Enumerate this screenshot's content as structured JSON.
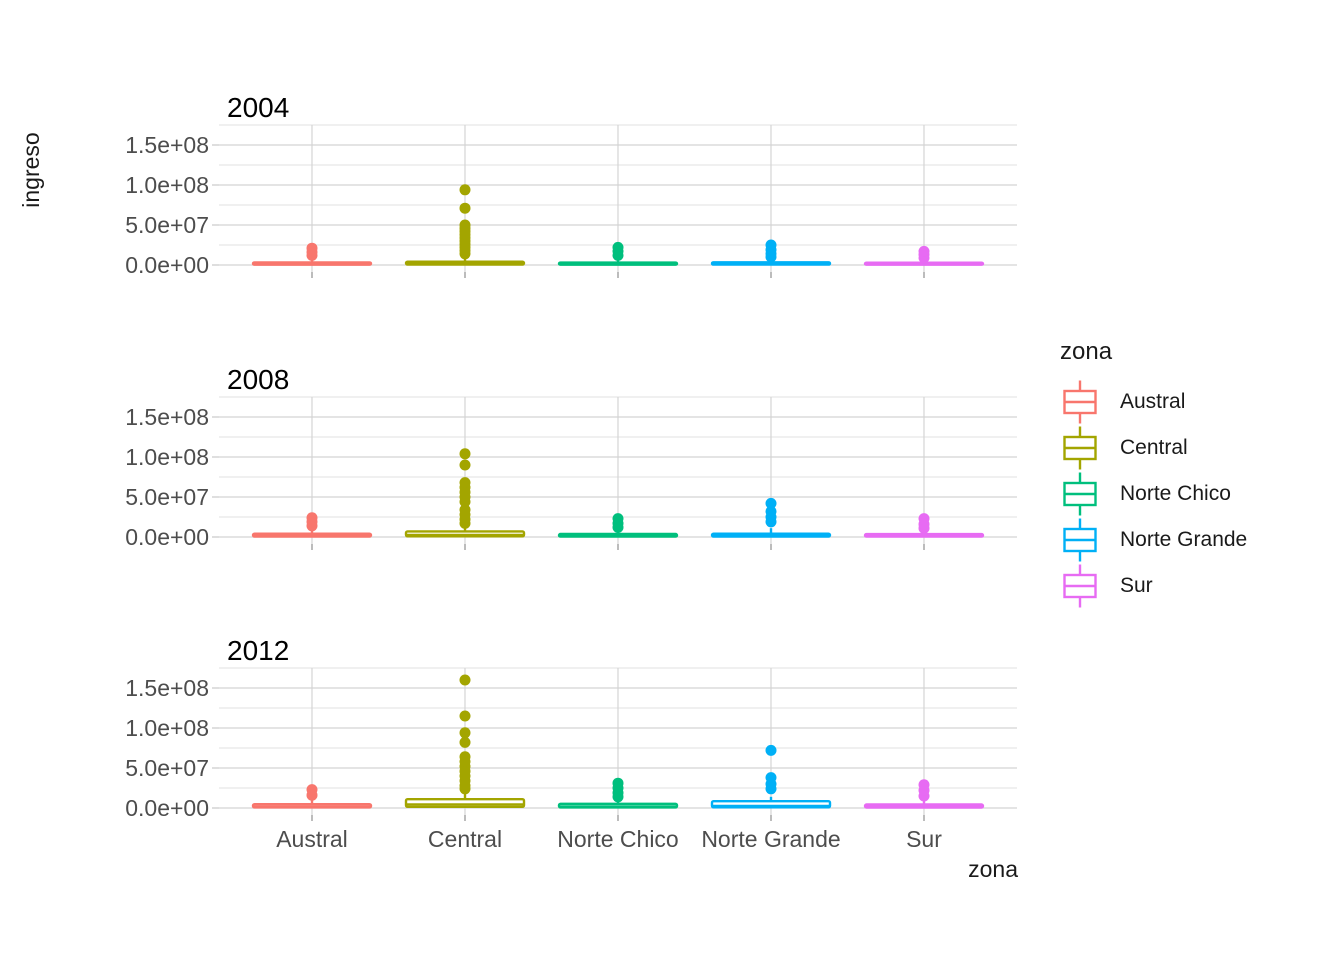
{
  "figure_background": "#FFFFFF",
  "legend": {
    "title": "zona",
    "items": [
      {
        "label": "Austral",
        "color": "#F8766D"
      },
      {
        "label": "Central",
        "color": "#A3A500"
      },
      {
        "label": "Norte Chico",
        "color": "#00BF7D"
      },
      {
        "label": "Norte Grande",
        "color": "#00B0F6"
      },
      {
        "label": "Sur",
        "color": "#E76BF3"
      }
    ]
  },
  "chart_data": {
    "type": "boxplot",
    "facet_by": "year",
    "grid": "on",
    "legend_position": "right",
    "x_axis": {
      "label": "zona",
      "categories": [
        "Austral",
        "Central",
        "Norte Chico",
        "Norte Grande",
        "Sur"
      ]
    },
    "y_axis": {
      "label": "ingreso",
      "tick_labels": [
        "0.0e+00",
        "5.0e+07",
        "1.0e+08",
        "1.5e+08"
      ],
      "tick_values": [
        0,
        50000000,
        100000000,
        150000000
      ],
      "minor_tick_values": [
        25000000,
        75000000,
        125000000,
        175000000
      ],
      "range": [
        -9000000,
        179000000
      ]
    },
    "series_colors": {
      "Austral": "#F8766D",
      "Central": "#A3A500",
      "Norte Chico": "#00BF7D",
      "Norte Grande": "#00B0F6",
      "Sur": "#E76BF3"
    },
    "facets": [
      {
        "title": "2004",
        "groups": [
          {
            "zona": "Austral",
            "color": "#F8766D",
            "stats": {
              "whisker_low": 0,
              "q1": 400000,
              "median": 1400000,
              "q3": 3200000,
              "whisker_high": 9000000
            },
            "outliers": [
              12000000,
              16000000,
              21000000
            ]
          },
          {
            "zona": "Central",
            "color": "#A3A500",
            "stats": {
              "whisker_low": 0,
              "q1": 600000,
              "median": 1800000,
              "q3": 4200000,
              "whisker_high": 12000000
            },
            "outliers": [
              14000000,
              18000000,
              22000000,
              26000000,
              30000000,
              34000000,
              38000000,
              42000000,
              46000000,
              50000000,
              71000000,
              94000000
            ]
          },
          {
            "zona": "Norte Chico",
            "color": "#00BF7D",
            "stats": {
              "whisker_low": 0,
              "q1": 400000,
              "median": 1300000,
              "q3": 3000000,
              "whisker_high": 8000000
            },
            "outliers": [
              12000000,
              17000000,
              22000000
            ]
          },
          {
            "zona": "Norte Grande",
            "color": "#00B0F6",
            "stats": {
              "whisker_low": 0,
              "q1": 500000,
              "median": 1500000,
              "q3": 3400000,
              "whisker_high": 9000000
            },
            "outliers": [
              10000000,
              14000000,
              19000000,
              25000000
            ]
          },
          {
            "zona": "Sur",
            "color": "#E76BF3",
            "stats": {
              "whisker_low": 0,
              "q1": 400000,
              "median": 1200000,
              "q3": 2800000,
              "whisker_high": 8000000
            },
            "outliers": [
              9000000,
              13000000,
              17000000
            ]
          }
        ]
      },
      {
        "title": "2008",
        "groups": [
          {
            "zona": "Austral",
            "color": "#F8766D",
            "stats": {
              "whisker_low": 0,
              "q1": 600000,
              "median": 1800000,
              "q3": 4200000,
              "whisker_high": 11000000
            },
            "outliers": [
              14000000,
              19000000,
              24000000
            ]
          },
          {
            "zona": "Central",
            "color": "#A3A500",
            "stats": {
              "whisker_low": 0,
              "q1": 900000,
              "median": 2600000,
              "q3": 7000000,
              "whisker_high": 15000000
            },
            "outliers": [
              17000000,
              22000000,
              28000000,
              34000000,
              44000000,
              50000000,
              56000000,
              62000000,
              68000000,
              90000000,
              104000000
            ]
          },
          {
            "zona": "Norte Chico",
            "color": "#00BF7D",
            "stats": {
              "whisker_low": 0,
              "q1": 500000,
              "median": 1600000,
              "q3": 3800000,
              "whisker_high": 10000000
            },
            "outliers": [
              12000000,
              17000000,
              23000000
            ]
          },
          {
            "zona": "Norte Grande",
            "color": "#00B0F6",
            "stats": {
              "whisker_low": 0,
              "q1": 600000,
              "median": 1800000,
              "q3": 4200000,
              "whisker_high": 11000000
            },
            "outliers": [
              19000000,
              25000000,
              32000000,
              42000000
            ]
          },
          {
            "zona": "Sur",
            "color": "#E76BF3",
            "stats": {
              "whisker_low": 0,
              "q1": 500000,
              "median": 1500000,
              "q3": 3600000,
              "whisker_high": 9000000
            },
            "outliers": [
              11000000,
              16000000,
              23000000
            ]
          }
        ]
      },
      {
        "title": "2012",
        "groups": [
          {
            "zona": "Austral",
            "color": "#F8766D",
            "stats": {
              "whisker_low": 0,
              "q1": 700000,
              "median": 2000000,
              "q3": 4800000,
              "whisker_high": 12000000
            },
            "outliers": [
              16000000,
              23000000
            ]
          },
          {
            "zona": "Central",
            "color": "#A3A500",
            "stats": {
              "whisker_low": 0,
              "q1": 1500000,
              "median": 4500000,
              "q3": 11000000,
              "whisker_high": 20000000
            },
            "outliers": [
              24000000,
              28000000,
              34000000,
              40000000,
              46000000,
              52000000,
              58000000,
              64000000,
              82000000,
              94000000,
              115000000,
              160000000
            ]
          },
          {
            "zona": "Norte Chico",
            "color": "#00BF7D",
            "stats": {
              "whisker_low": 0,
              "q1": 700000,
              "median": 2000000,
              "q3": 5200000,
              "whisker_high": 12000000
            },
            "outliers": [
              14000000,
              19000000,
              25000000,
              31000000
            ]
          },
          {
            "zona": "Norte Grande",
            "color": "#00B0F6",
            "stats": {
              "whisker_low": 0,
              "q1": 900000,
              "median": 2600000,
              "q3": 8500000,
              "whisker_high": 14000000
            },
            "outliers": [
              24000000,
              30000000,
              38000000,
              72000000
            ]
          },
          {
            "zona": "Sur",
            "color": "#E76BF3",
            "stats": {
              "whisker_low": 0,
              "q1": 600000,
              "median": 1800000,
              "q3": 4400000,
              "whisker_high": 11000000
            },
            "outliers": [
              15000000,
              22000000,
              29000000
            ]
          }
        ]
      }
    ]
  }
}
